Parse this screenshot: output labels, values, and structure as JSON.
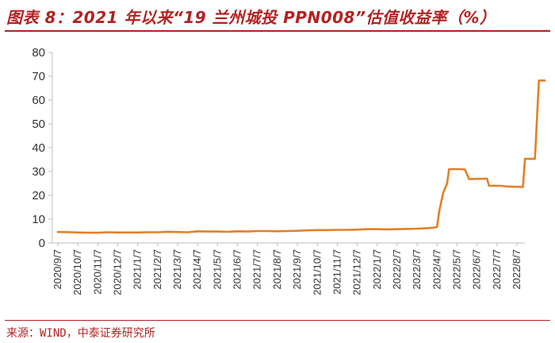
{
  "header": {
    "title": "图表 8：2021 年以来“19 兰州城投 PPN008”估值收益率（%）"
  },
  "footer": {
    "source": "来源：WIND，中泰证券研究所"
  },
  "colors": {
    "line": "#e37f27",
    "accent": "#b22222",
    "axis": "#bfbfbf"
  },
  "chart_data": {
    "type": "line",
    "title": "2021 年以来“19 兰州城投 PPN008”估值收益率（%）",
    "xlabel": "",
    "ylabel": "%",
    "ylim": [
      0,
      80
    ],
    "yticks": [
      "0",
      "10",
      "20",
      "30",
      "40",
      "50",
      "60",
      "70",
      "80"
    ],
    "xticks": [
      "2020/9/7",
      "2020/10/7",
      "2020/11/7",
      "2020/12/7",
      "2021/1/7",
      "2021/2/7",
      "2021/3/7",
      "2021/4/7",
      "2021/5/7",
      "2021/6/7",
      "2021/7/7",
      "2021/8/7",
      "2021/9/7",
      "2021/10/7",
      "2021/11/7",
      "2021/12/7",
      "2022/1/7",
      "2022/2/7",
      "2022/3/7",
      "2022/4/7",
      "2022/5/7",
      "2022/6/7",
      "2022/7/7",
      "2022/8/7"
    ],
    "grid": false,
    "series": [
      {
        "name": "19 兰州城投 PPN008 估值收益率",
        "points": [
          [
            0,
            4.6
          ],
          [
            0.7,
            4.5
          ],
          [
            1.0,
            4.4
          ],
          [
            1.5,
            4.3
          ],
          [
            2.0,
            4.3
          ],
          [
            2.5,
            4.5
          ],
          [
            3.0,
            4.4
          ],
          [
            3.5,
            4.4
          ],
          [
            4.0,
            4.4
          ],
          [
            4.5,
            4.5
          ],
          [
            5.0,
            4.5
          ],
          [
            5.5,
            4.7
          ],
          [
            6.0,
            4.6
          ],
          [
            6.5,
            4.5
          ],
          [
            7.0,
            4.9
          ],
          [
            7.5,
            4.8
          ],
          [
            8.0,
            4.8
          ],
          [
            8.5,
            4.7
          ],
          [
            9.0,
            4.9
          ],
          [
            9.5,
            4.8
          ],
          [
            10.0,
            5.0
          ],
          [
            10.5,
            5.0
          ],
          [
            11.0,
            4.9
          ],
          [
            11.5,
            5.0
          ],
          [
            12.0,
            5.1
          ],
          [
            12.5,
            5.3
          ],
          [
            13.0,
            5.4
          ],
          [
            13.5,
            5.4
          ],
          [
            14.0,
            5.5
          ],
          [
            14.5,
            5.5
          ],
          [
            15.0,
            5.6
          ],
          [
            15.5,
            5.8
          ],
          [
            16.0,
            5.8
          ],
          [
            16.5,
            5.7
          ],
          [
            17.0,
            5.8
          ],
          [
            17.5,
            5.9
          ],
          [
            18.0,
            6.0
          ],
          [
            18.5,
            6.2
          ],
          [
            18.9,
            6.5
          ],
          [
            19.0,
            6.8
          ],
          [
            19.1,
            13.0
          ],
          [
            19.3,
            21.0
          ],
          [
            19.5,
            25.0
          ],
          [
            19.6,
            31.0
          ],
          [
            20.2,
            31.0
          ],
          [
            20.4,
            30.8
          ],
          [
            20.6,
            26.8
          ],
          [
            21.5,
            27.0
          ],
          [
            21.6,
            24.0
          ],
          [
            22.2,
            24.0
          ],
          [
            22.5,
            23.7
          ],
          [
            23.3,
            23.5
          ],
          [
            23.4,
            35.3
          ],
          [
            23.9,
            35.3
          ],
          [
            24.1,
            68.2
          ],
          [
            24.4,
            68.2
          ]
        ]
      }
    ]
  }
}
